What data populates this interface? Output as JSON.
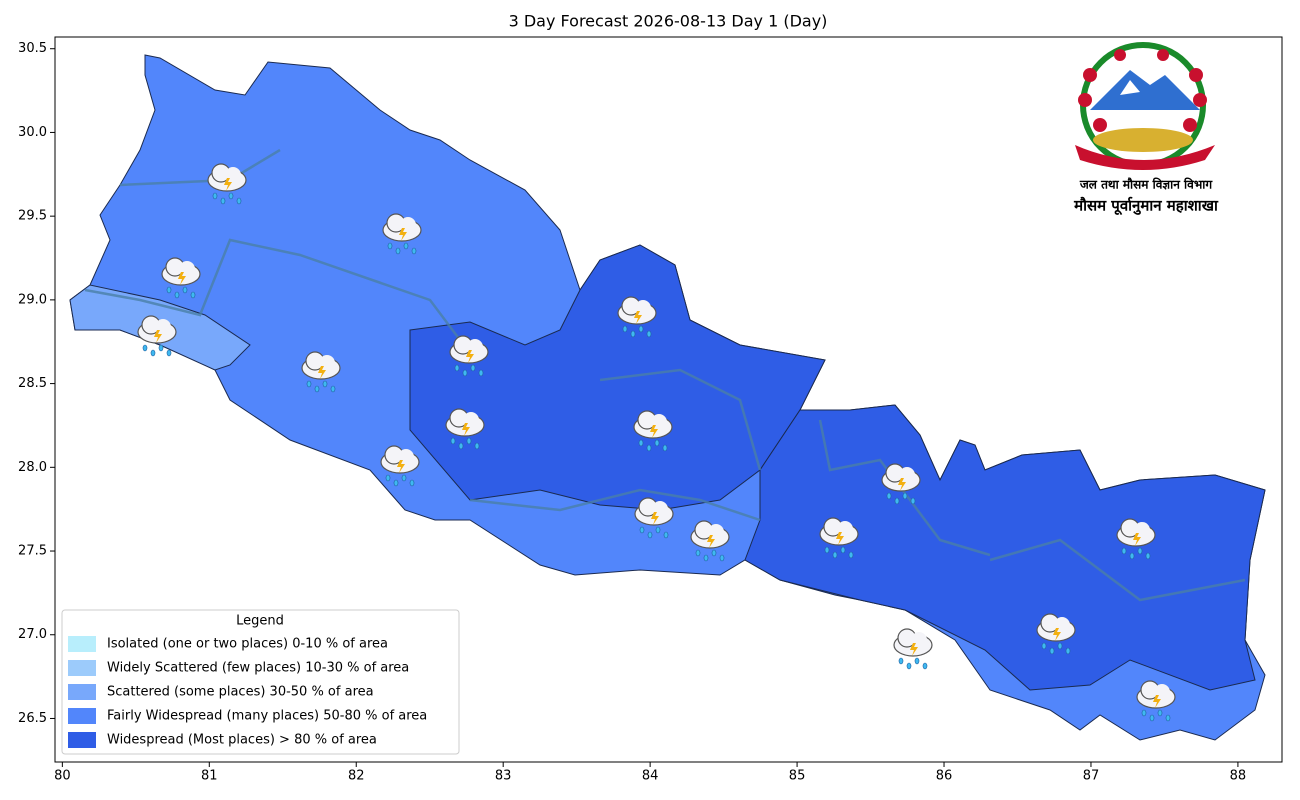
{
  "title": "3 Day Forecast 2026-08-13 Day 1 (Day)",
  "map": {
    "xlim": [
      79.95,
      88.3
    ],
    "ylim": [
      26.24,
      30.57
    ],
    "xticks": [
      80,
      81,
      82,
      83,
      84,
      85,
      86,
      87,
      88
    ],
    "yticks": [
      26.5,
      {
        "value": 27,
        "label": "27.0"
      },
      27.5,
      {
        "value": 28,
        "label": "28.0"
      },
      28.5,
      {
        "value": 29,
        "label": "29.0"
      },
      29.5,
      {
        "value": 30,
        "label": "30.0"
      },
      30.5
    ]
  },
  "legend": {
    "title": "Legend",
    "items": [
      {
        "label": "Isolated (one or two places)  0-10 % of area",
        "color": "#b8eefc"
      },
      {
        "label": "Widely Scattered (few places)  10-30 % of area",
        "color": "#9ccbfb"
      },
      {
        "label": "Scattered (some places)  30-50 % of area",
        "color": "#78a8fb"
      },
      {
        "label": "Fairly Widespread (many places)  50-80 % of area",
        "color": "#5286fb"
      },
      {
        "label": "Widespread (Most places) > 80 % of area",
        "color": "#2f5de6"
      }
    ]
  },
  "logo": {
    "department": "जल तथा मौसम विज्ञान विभाग",
    "division": "मौसम पूर्वानुमान महाशाखा"
  }
}
